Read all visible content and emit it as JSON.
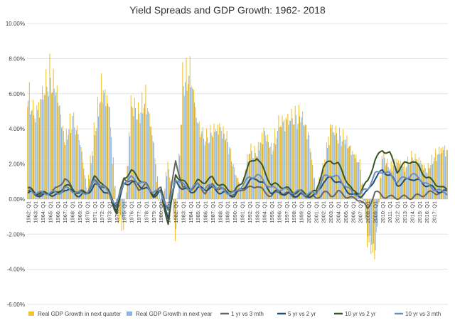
{
  "chart_data": {
    "type": "bar+line",
    "title": "Yield Spreads and GDP Growth: 1962- 2018",
    "ylim": [
      -0.06,
      0.1
    ],
    "y_ticks": [
      "10.00%",
      "8.00%",
      "6.00%",
      "4.00%",
      "2.00%",
      "0.00%",
      "-2.00%",
      "-4.00%",
      "-6.00%"
    ],
    "y_tick_values": [
      0.1,
      0.08,
      0.06,
      0.04,
      0.02,
      0.0,
      -0.02,
      -0.04,
      -0.06
    ],
    "x_start_year": 1962,
    "x_end_year": 2018,
    "x_tick_labels": [
      "1962: Q1",
      "1963: Q1",
      "1964: Q1",
      "1965: Q1",
      "1966: Q1",
      "1967: Q1",
      "1968: Q1",
      "1969: Q1",
      "1970: Q1",
      "1971: Q1",
      "1972: Q1",
      "1973: Q1",
      "1974: Q1",
      "1975: Q1",
      "1976: Q1",
      "1977: Q1",
      "1978: Q1",
      "1979: Q1",
      "1980: Q1",
      "1981: Q1",
      "1982: Q1",
      "1983: Q1",
      "1984: Q1",
      "1985: Q1",
      "1986: Q1",
      "1987: Q1",
      "1988: Q1",
      "1989: Q1",
      "1990: Q1",
      "1991: Q1",
      "1992: Q1",
      "1993: Q1",
      "1994: Q1",
      "1995: Q1",
      "1996: Q1",
      "1997: Q1",
      "1998: Q1",
      "1999: Q1",
      "2000: Q1",
      "2001: Q1",
      "2002: Q1",
      "2003: Q1",
      "2004: Q1",
      "2005: Q1",
      "2006: Q1",
      "2007: Q1",
      "2008: Q1",
      "2009: Q1",
      "2010: Q1",
      "2011: Q1",
      "2012: Q1",
      "2013: Q1",
      "2014: Q1",
      "2015: Q1",
      "2016: Q1",
      "2017: Q1"
    ],
    "gdp_anchor_years": [
      1962,
      1963,
      1964,
      1965,
      1966,
      1967,
      1968,
      1969,
      1970,
      1971,
      1972,
      1973,
      1974,
      1975,
      1976,
      1977,
      1978,
      1979,
      1980,
      1981,
      1982,
      1983,
      1984,
      1985,
      1986,
      1987,
      1988,
      1989,
      1990,
      1991,
      1992,
      1993,
      1994,
      1995,
      1996,
      1997,
      1998,
      1999,
      2000,
      2001,
      2002,
      2003,
      2004,
      2005,
      2006,
      2007,
      2008,
      2009,
      2010,
      2011,
      2012,
      2013,
      2014,
      2015,
      2016,
      2017,
      2018
    ],
    "series": [
      {
        "name": "Real GDP Growth in next quarter",
        "kind": "bar",
        "color": "#F2C230",
        "values": [
          0.062,
          0.046,
          0.058,
          0.072,
          0.058,
          0.032,
          0.046,
          0.034,
          0.006,
          0.038,
          0.064,
          0.052,
          -0.01,
          -0.018,
          0.054,
          0.048,
          0.058,
          0.032,
          -0.012,
          0.022,
          -0.022,
          0.068,
          0.072,
          0.042,
          0.034,
          0.038,
          0.04,
          0.034,
          0.016,
          0.006,
          0.028,
          0.026,
          0.038,
          0.028,
          0.042,
          0.044,
          0.046,
          0.047,
          0.036,
          0.004,
          0.018,
          0.04,
          0.036,
          0.034,
          0.026,
          0.02,
          -0.024,
          -0.032,
          0.026,
          0.018,
          0.022,
          0.018,
          0.024,
          0.022,
          0.016,
          0.024,
          0.028
        ]
      },
      {
        "name": "Real GDP Growth in next year",
        "kind": "bar",
        "color": "#8DB4E2",
        "values": [
          0.052,
          0.044,
          0.056,
          0.064,
          0.056,
          0.03,
          0.044,
          0.032,
          0.004,
          0.034,
          0.058,
          0.05,
          -0.006,
          -0.012,
          0.05,
          0.046,
          0.052,
          0.03,
          -0.006,
          0.018,
          -0.016,
          0.062,
          0.066,
          0.04,
          0.032,
          0.036,
          0.038,
          0.032,
          0.014,
          0.004,
          0.026,
          0.024,
          0.036,
          0.026,
          0.04,
          0.042,
          0.044,
          0.045,
          0.034,
          0.004,
          0.016,
          0.038,
          0.034,
          0.032,
          0.024,
          0.018,
          -0.02,
          -0.028,
          0.024,
          0.016,
          0.02,
          0.016,
          0.022,
          0.02,
          0.015,
          0.022,
          0.026
        ]
      },
      {
        "name": "1 yr vs 3 mth",
        "kind": "line",
        "color": "#666666",
        "values": [
          0.004,
          0.003,
          0.002,
          0.004,
          0.006,
          0.012,
          0.006,
          0.004,
          0.004,
          0.01,
          0.008,
          0.004,
          -0.004,
          0.012,
          0.01,
          0.006,
          0.008,
          0.002,
          0.006,
          -0.006,
          0.022,
          0.006,
          0.006,
          0.008,
          0.004,
          0.008,
          0.006,
          0.004,
          0.002,
          0.006,
          0.006,
          0.008,
          0.004,
          0.002,
          0.004,
          0.003,
          0.002,
          0.002,
          0.002,
          0.0,
          0.004,
          0.002,
          0.004,
          0.002,
          0.0,
          0.0,
          -0.006,
          0.004,
          0.002,
          0.001,
          0.001,
          0.001,
          0.001,
          0.002,
          0.003,
          0.004,
          0.003
        ]
      },
      {
        "name": "5 yr vs 2 yr",
        "kind": "line",
        "color": "#1F4E79",
        "values": [
          0.004,
          0.003,
          0.002,
          0.003,
          0.002,
          0.006,
          0.004,
          0.002,
          0.003,
          0.008,
          0.006,
          0.002,
          -0.006,
          0.008,
          0.01,
          0.008,
          0.006,
          0.002,
          0.004,
          -0.01,
          0.01,
          0.006,
          0.004,
          0.006,
          0.006,
          0.006,
          0.004,
          0.003,
          0.002,
          0.006,
          0.01,
          0.012,
          0.008,
          0.004,
          0.004,
          0.003,
          0.002,
          0.003,
          0.002,
          0.002,
          0.01,
          0.012,
          0.01,
          0.006,
          0.002,
          0.002,
          0.004,
          0.012,
          0.016,
          0.014,
          0.008,
          0.01,
          0.012,
          0.01,
          0.008,
          0.006,
          0.004
        ]
      },
      {
        "name": "10 yr vs 2 yr",
        "kind": "line",
        "color": "#375623",
        "values": [
          0.006,
          0.004,
          0.003,
          0.004,
          0.003,
          0.008,
          0.006,
          0.003,
          0.004,
          0.012,
          0.01,
          0.003,
          -0.008,
          0.012,
          0.016,
          0.012,
          0.008,
          0.003,
          0.004,
          -0.014,
          0.014,
          0.01,
          0.006,
          0.01,
          0.01,
          0.012,
          0.008,
          0.006,
          0.004,
          0.01,
          0.02,
          0.024,
          0.016,
          0.008,
          0.008,
          0.006,
          0.004,
          0.004,
          0.003,
          0.004,
          0.018,
          0.022,
          0.02,
          0.012,
          0.004,
          0.004,
          0.01,
          0.022,
          0.028,
          0.026,
          0.016,
          0.02,
          0.022,
          0.018,
          0.012,
          0.01,
          0.006
        ]
      },
      {
        "name": "10 yr vs 3 mth",
        "kind": "line",
        "color": "#6C8EBF",
        "values": [
          0.005,
          0.004,
          0.003,
          0.004,
          0.003,
          0.006,
          0.005,
          0.003,
          0.004,
          0.01,
          0.008,
          0.003,
          -0.004,
          0.01,
          0.012,
          0.01,
          0.008,
          0.004,
          0.004,
          -0.006,
          0.012,
          0.008,
          0.006,
          0.008,
          0.006,
          0.008,
          0.006,
          0.004,
          0.003,
          0.008,
          0.012,
          0.014,
          0.01,
          0.006,
          0.006,
          0.005,
          0.004,
          0.004,
          0.003,
          0.003,
          0.012,
          0.014,
          0.012,
          0.008,
          0.003,
          0.003,
          0.006,
          0.014,
          0.016,
          0.014,
          0.01,
          0.012,
          0.014,
          0.012,
          0.008,
          0.006,
          0.004
        ]
      }
    ],
    "legend_position": "bottom"
  }
}
